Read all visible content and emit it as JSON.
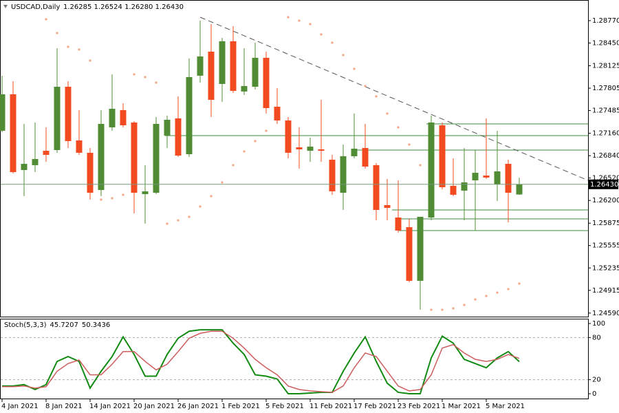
{
  "chart_data": [
    {
      "type": "candlestick",
      "symbol": "USDCAD,Daily",
      "info": "1.26285 1.26524 1.26280 1.26430",
      "last_price_label": "1.26430",
      "categories": [
        "4 Jan 2021",
        null,
        null,
        null,
        "8 Jan 2021",
        null,
        null,
        null,
        "14 Jan 2021",
        null,
        null,
        null,
        "20 Jan 2021",
        null,
        null,
        null,
        "26 Jan 2021",
        null,
        null,
        null,
        "1 Feb 2021",
        null,
        null,
        null,
        "5 Feb 2021",
        null,
        null,
        null,
        "11 Feb 2021",
        null,
        null,
        null,
        "17 Feb 2021",
        null,
        null,
        null,
        "23 Feb 2021",
        null,
        null,
        null,
        "1 Mar 2021",
        null,
        null,
        null,
        "5 Mar 2021",
        null,
        null,
        null
      ],
      "open": [
        1.27196,
        1.27717,
        1.26635,
        1.26704,
        1.2691,
        1.2692,
        1.27825,
        1.27058,
        1.26881,
        1.26349,
        1.27245,
        1.27491,
        1.27314,
        1.2629,
        1.2631,
        1.27127,
        1.27373,
        1.26861,
        1.27983,
        1.28327,
        1.27865,
        1.28475,
        1.27757,
        1.27825,
        1.28239,
        1.2754,
        1.27343,
        1.26959,
        1.2691,
        1.2693,
        1.26782,
        1.2631,
        1.26832,
        1.2695,
        1.26704,
        1.26133,
        1.25956,
        1.25818,
        1.25051,
        1.25956,
        1.27274,
        1.26408,
        1.2634,
        1.26487,
        1.26556,
        1.26428,
        1.26723,
        1.26285
      ],
      "high": [
        1.27983,
        1.27904,
        1.27294,
        1.27314,
        1.27245,
        1.28376,
        1.27904,
        1.27491,
        1.2695,
        1.27491,
        1.28002,
        1.27589,
        1.27333,
        1.26704,
        1.27392,
        1.27412,
        1.27688,
        1.28229,
        1.2877,
        1.28721,
        1.28524,
        1.28691,
        1.28376,
        1.28455,
        1.28327,
        1.27806,
        1.27392,
        1.27245,
        1.27097,
        1.27638,
        1.26851,
        1.26999,
        1.27442,
        1.27294,
        1.26733,
        1.26507,
        1.26487,
        1.25936,
        1.25966,
        1.27412,
        1.27314,
        1.26802,
        1.2695,
        1.2692,
        1.27373,
        1.27196,
        1.26782,
        1.26524
      ],
      "low": [
        1.27176,
        1.26586,
        1.26261,
        1.26605,
        1.26753,
        1.26881,
        1.2695,
        1.26851,
        1.26212,
        1.26261,
        1.27196,
        1.27245,
        1.26015,
        1.25867,
        1.2629,
        1.2695,
        1.26822,
        1.26822,
        1.27884,
        1.27392,
        1.27609,
        1.27737,
        1.27707,
        1.27786,
        1.27442,
        1.27294,
        1.26802,
        1.26654,
        1.26753,
        1.26753,
        1.26281,
        1.26064,
        1.26802,
        1.26654,
        1.25916,
        1.25916,
        1.25739,
        1.25031,
        1.24637,
        1.25916,
        1.26359,
        1.26261,
        1.25916,
        1.25769,
        1.26507,
        1.26192,
        1.25887,
        1.2628
      ],
      "close": [
        1.27717,
        1.26605,
        1.26723,
        1.26792,
        1.26851,
        1.27825,
        1.27048,
        1.26881,
        1.2631,
        1.27294,
        1.2751,
        1.27274,
        1.2631,
        1.2633,
        1.27294,
        1.27353,
        1.26841,
        1.27963,
        1.28258,
        1.27638,
        1.28475,
        1.27766,
        1.27835,
        1.28239,
        1.2752,
        1.27343,
        1.26881,
        1.2693,
        1.26969,
        1.2691,
        1.2633,
        1.26832,
        1.2694,
        1.26684,
        1.26064,
        1.26094,
        1.25769,
        1.25051,
        1.25966,
        1.27314,
        1.26389,
        1.26281,
        1.26458,
        1.26595,
        1.26527,
        1.26615,
        1.2631,
        1.2643
      ],
      "up_color": "#508c34",
      "down_color": "#f24b22",
      "parabolic_sar": [
        null,
        null,
        null,
        null,
        1.2879,
        1.28593,
        1.28396,
        1.28357,
        1.28199,
        1.26212,
        1.26231,
        1.26281,
        1.28002,
        1.27963,
        1.27884,
        1.25867,
        1.25916,
        1.25966,
        1.26113,
        1.26261,
        1.26458,
        1.26704,
        1.269,
        1.27048,
        1.27196,
        null,
        1.28819,
        1.2877,
        1.28721,
        1.28573,
        1.28455,
        1.28278,
        1.28081,
        1.27835,
        1.27688,
        1.27442,
        1.27245,
        1.26999,
        1.26704,
        1.24637,
        1.24637,
        1.24657,
        1.24706,
        1.24785,
        1.24834,
        1.24883,
        1.24932,
        1.25011
      ],
      "sar_color": "#f4a582",
      "levels": [
        1.27294,
        1.27127,
        1.2692,
        1.26064,
        1.25936,
        1.25769
      ],
      "level_color": "#3d8c3d",
      "trendline": [
        1.28819,
        1.269
      ],
      "ylim": [
        1.24539,
        1.29065
      ],
      "yticks": [
        {
          "value": 1.2877,
          "label": "1.28770"
        },
        {
          "value": 1.2845,
          "label": "1.28450"
        },
        1.28125,
        1.27805,
        1.27485,
        {
          "value": 1.2716,
          "label": "1.27160"
        },
        {
          "value": 1.2684,
          "label": "1.26840"
        },
        {
          "value": 1.2652,
          "label": "1.26520"
        },
        {
          "value": 1.262,
          "label": "1.26200"
        },
        1.25875,
        1.25555,
        1.25235,
        1.24915,
        {
          "value": 1.2459,
          "label": "1.24590"
        }
      ]
    },
    {
      "type": "line",
      "title": "Stoch(5,3,3)",
      "series": [
        {
          "color": "#118a11",
          "values": [
            11,
            11,
            13,
            6,
            13,
            46,
            53,
            46,
            8,
            32,
            53,
            81,
            56,
            25,
            25,
            56,
            79,
            89,
            91,
            91,
            91,
            72,
            56,
            27,
            25,
            21,
            0,
            0,
            1,
            2,
            2,
            32,
            58,
            81,
            46,
            15,
            2,
            0,
            0,
            51,
            82,
            72,
            49,
            43,
            37,
            51,
            60,
            45.7207
          ]
        },
        {
          "color": "#cd5c5c",
          "values": [
            10,
            10,
            11,
            8,
            10,
            32,
            43,
            48,
            27,
            27,
            42,
            60,
            60,
            46,
            34,
            42,
            60,
            79,
            86,
            89,
            89,
            79,
            65,
            49,
            37,
            27,
            11,
            6,
            4,
            3,
            2,
            11,
            37,
            58,
            53,
            32,
            11,
            4,
            6,
            27,
            65,
            70,
            58,
            49,
            46,
            49,
            56,
            50.3436
          ]
        }
      ],
      "ylim": [
        0,
        100
      ],
      "yticks": [
        100,
        80,
        20,
        0
      ],
      "levels": [
        80,
        20
      ]
    }
  ]
}
